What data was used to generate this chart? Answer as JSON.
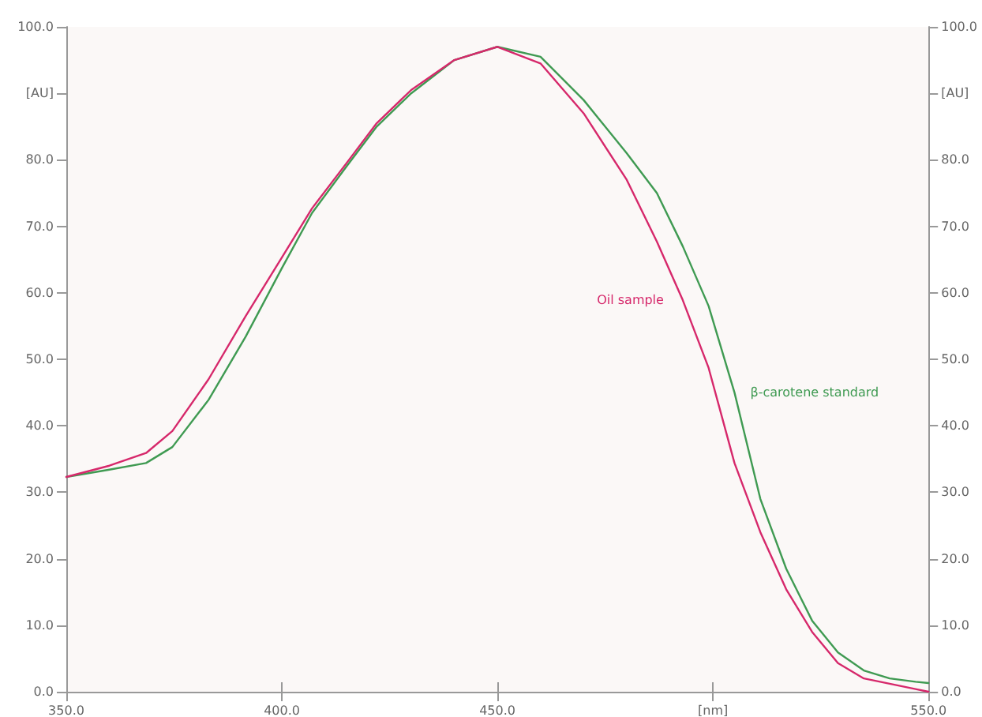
{
  "chart_data": {
    "type": "line",
    "x": [
      350,
      360,
      368.5,
      374.6,
      383,
      391.6,
      400,
      407,
      415,
      422,
      430,
      440,
      450,
      460,
      470,
      480,
      487,
      493,
      499,
      505,
      511,
      517,
      523,
      529,
      535,
      541,
      547,
      550
    ],
    "series": [
      {
        "name": "β-carotene standard",
        "color": "#3f9a52",
        "values": [
          32.3,
          33.4,
          34.4,
          36.8,
          43.9,
          53.4,
          63.7,
          72,
          79,
          85,
          90,
          95,
          97,
          95.5,
          89,
          81,
          75,
          67,
          58,
          45,
          29,
          18.5,
          10.7,
          5.9,
          3.2,
          2,
          1.5,
          1.3
        ]
      },
      {
        "name": "Oil sample",
        "color": "#d6286b",
        "values": [
          32.3,
          34,
          35.9,
          39.2,
          47,
          56.5,
          65.3,
          72.7,
          79.5,
          85.5,
          90.5,
          95,
          97,
          94.5,
          87,
          77,
          67.7,
          58.9,
          48.7,
          34.4,
          24,
          15.4,
          9,
          4.3,
          2,
          1.2,
          0.4,
          0
        ]
      }
    ],
    "xlim": [
      350,
      550
    ],
    "xticks": [
      {
        "value": 350,
        "label": "350.0"
      },
      {
        "value": 400,
        "label": "400.0"
      },
      {
        "value": 450,
        "label": "450.0"
      },
      {
        "value": 500,
        "label": "[nm]"
      },
      {
        "value": 550,
        "label": "550.0"
      }
    ],
    "ylim": [
      0,
      100
    ],
    "yticks": [
      {
        "value": 0,
        "label": "0.0"
      },
      {
        "value": 10,
        "label": "10.0"
      },
      {
        "value": 20,
        "label": "20.0"
      },
      {
        "value": 30,
        "label": "30.0"
      },
      {
        "value": 40,
        "label": "40.0"
      },
      {
        "value": 50,
        "label": "50.0"
      },
      {
        "value": 60,
        "label": "60.0"
      },
      {
        "value": 70,
        "label": "70.0"
      },
      {
        "value": 80,
        "label": "80.0"
      },
      {
        "value": 90,
        "label": "[AU]"
      },
      {
        "value": 100,
        "label": "100.0"
      }
    ],
    "y2lim": [
      0,
      100
    ],
    "y2ticks": [
      {
        "value": 0,
        "label": "0.0"
      },
      {
        "value": 10,
        "label": "10.0"
      },
      {
        "value": 20,
        "label": "20.0"
      },
      {
        "value": 30,
        "label": "30.0"
      },
      {
        "value": 40,
        "label": "40.0"
      },
      {
        "value": 50,
        "label": "50.0"
      },
      {
        "value": 60,
        "label": "60.0"
      },
      {
        "value": 70,
        "label": "70.0"
      },
      {
        "value": 80,
        "label": "80.0"
      },
      {
        "value": 90,
        "label": "[AU]"
      },
      {
        "value": 100,
        "label": "100.0"
      }
    ],
    "grid": false,
    "line_style": "solid"
  }
}
